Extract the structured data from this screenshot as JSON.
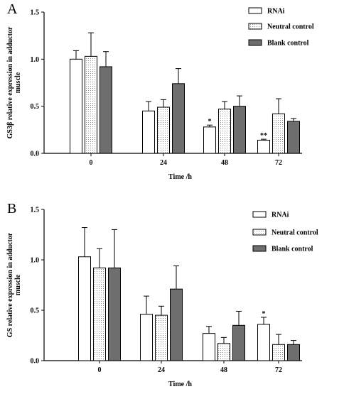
{
  "colors": {
    "rnai": "#ffffff",
    "neutral": "#ffffff",
    "blank": "#6e6e6e",
    "stroke": "#000000"
  },
  "chart_data": [
    {
      "type": "bar",
      "panel_label": "A",
      "title": "",
      "xlabel": "Time /h",
      "ylabel": "GS3β relative expression in adductor muscle",
      "ylim": [
        0,
        1.5
      ],
      "yticks": [
        "0.0",
        "0.5",
        "1.0",
        "1.5"
      ],
      "categories": [
        "0",
        "24",
        "48",
        "72"
      ],
      "grid": false,
      "legend_position": "top-right",
      "series": [
        {
          "name": "RNAi",
          "pattern": "white",
          "values": [
            1.0,
            0.45,
            0.28,
            0.14
          ],
          "errors": [
            0.09,
            0.1,
            0.02,
            0.01
          ],
          "significance": [
            "",
            "",
            "*",
            "**"
          ]
        },
        {
          "name": "Neutral control",
          "pattern": "dotted",
          "values": [
            1.03,
            0.49,
            0.47,
            0.42
          ],
          "errors": [
            0.25,
            0.08,
            0.08,
            0.16
          ],
          "significance": [
            "",
            "",
            "",
            ""
          ]
        },
        {
          "name": "Blank control",
          "pattern": "gray",
          "values": [
            0.92,
            0.74,
            0.5,
            0.34
          ],
          "errors": [
            0.16,
            0.16,
            0.11,
            0.03
          ],
          "significance": [
            "",
            "",
            "",
            ""
          ]
        }
      ]
    },
    {
      "type": "bar",
      "panel_label": "B",
      "title": "",
      "xlabel": "Time /h",
      "ylabel": "GS relative expression in adductor muscle",
      "ylim": [
        0,
        1.5
      ],
      "yticks": [
        "0.0",
        "0.5",
        "1.0",
        "1.5"
      ],
      "categories": [
        "0",
        "24",
        "48",
        "72"
      ],
      "grid": false,
      "legend_position": "top-right",
      "series": [
        {
          "name": "RNAi",
          "pattern": "white",
          "values": [
            1.03,
            0.46,
            0.27,
            0.36
          ],
          "errors": [
            0.29,
            0.18,
            0.07,
            0.07
          ],
          "significance": [
            "",
            "",
            "",
            "*"
          ]
        },
        {
          "name": "Neutral control",
          "pattern": "dotted",
          "values": [
            0.92,
            0.45,
            0.17,
            0.16
          ],
          "errors": [
            0.19,
            0.09,
            0.06,
            0.1
          ],
          "significance": [
            "",
            "",
            "",
            ""
          ]
        },
        {
          "name": "Blank control",
          "pattern": "gray",
          "values": [
            0.92,
            0.71,
            0.35,
            0.16
          ],
          "errors": [
            0.38,
            0.23,
            0.14,
            0.04
          ],
          "significance": [
            "",
            "",
            "",
            ""
          ]
        }
      ]
    }
  ]
}
